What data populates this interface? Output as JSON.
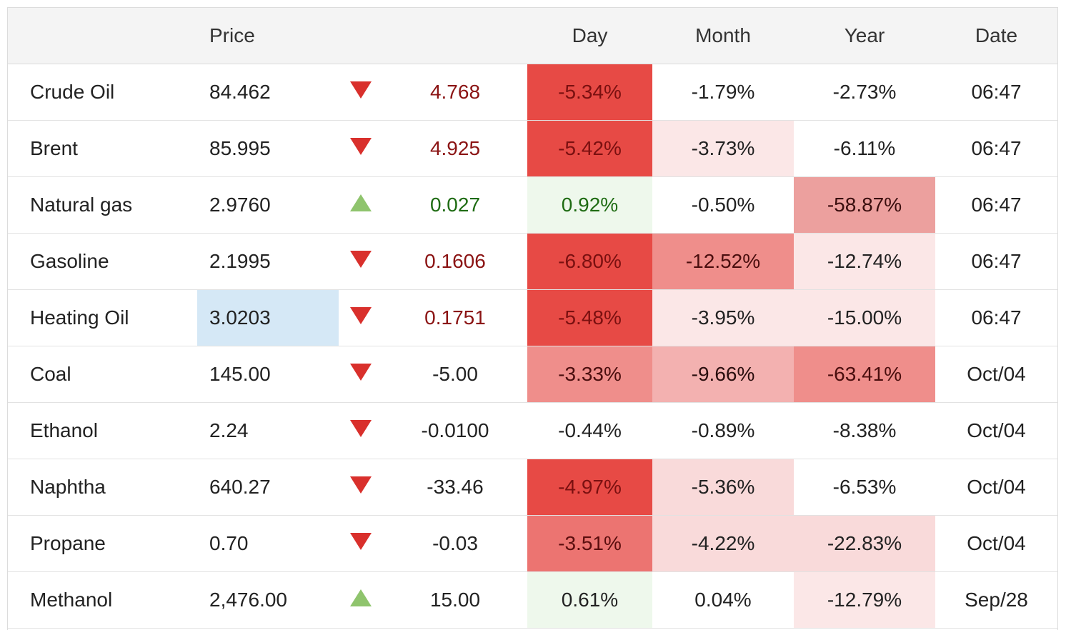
{
  "headers": {
    "name": "",
    "price": "Price",
    "arrow": "",
    "change": "",
    "day": "Day",
    "month": "Month",
    "year": "Year",
    "date": "Date"
  },
  "colors": {
    "down_arrow": "#d9302c",
    "up_arrow": "#8fc46d",
    "neg_text": "#8b1414",
    "pos_text": "#1e6b12",
    "strong_red": "#e74a45",
    "pale_green": "#eef8ec",
    "selected_cell": "#d5e8f6"
  },
  "rows": [
    {
      "name": "Crude Oil",
      "price": "84.462",
      "direction": "down",
      "change": "4.768",
      "day": "-5.34%",
      "month": "-1.79%",
      "year": "-2.73%",
      "date": "06:47"
    },
    {
      "name": "Brent",
      "price": "85.995",
      "direction": "down",
      "change": "4.925",
      "day": "-5.42%",
      "month": "-3.73%",
      "year": "-6.11%",
      "date": "06:47"
    },
    {
      "name": "Natural gas",
      "price": "2.9760",
      "direction": "up",
      "change": "0.027",
      "day": "0.92%",
      "month": "-0.50%",
      "year": "-58.87%",
      "date": "06:47"
    },
    {
      "name": "Gasoline",
      "price": "2.1995",
      "direction": "down",
      "change": "0.1606",
      "day": "-6.80%",
      "month": "-12.52%",
      "year": "-12.74%",
      "date": "06:47"
    },
    {
      "name": "Heating Oil",
      "price": "3.0203",
      "direction": "down",
      "change": "0.1751",
      "day": "-5.48%",
      "month": "-3.95%",
      "year": "-15.00%",
      "date": "06:47"
    },
    {
      "name": "Coal",
      "price": "145.00",
      "direction": "down",
      "change": "-5.00",
      "day": "-3.33%",
      "month": "-9.66%",
      "year": "-63.41%",
      "date": "Oct/04"
    },
    {
      "name": "Ethanol",
      "price": "2.24",
      "direction": "down",
      "change": "-0.0100",
      "day": "-0.44%",
      "month": "-0.89%",
      "year": "-8.38%",
      "date": "Oct/04"
    },
    {
      "name": "Naphtha",
      "price": "640.27",
      "direction": "down",
      "change": "-33.46",
      "day": "-4.97%",
      "month": "-5.36%",
      "year": "-6.53%",
      "date": "Oct/04"
    },
    {
      "name": "Propane",
      "price": "0.70",
      "direction": "down",
      "change": "-0.03",
      "day": "-3.51%",
      "month": "-4.22%",
      "year": "-22.83%",
      "date": "Oct/04"
    },
    {
      "name": "Methanol",
      "price": "2,476.00",
      "direction": "up",
      "change": "15.00",
      "day": "0.61%",
      "month": "0.04%",
      "year": "-12.79%",
      "date": "Sep/28"
    }
  ]
}
